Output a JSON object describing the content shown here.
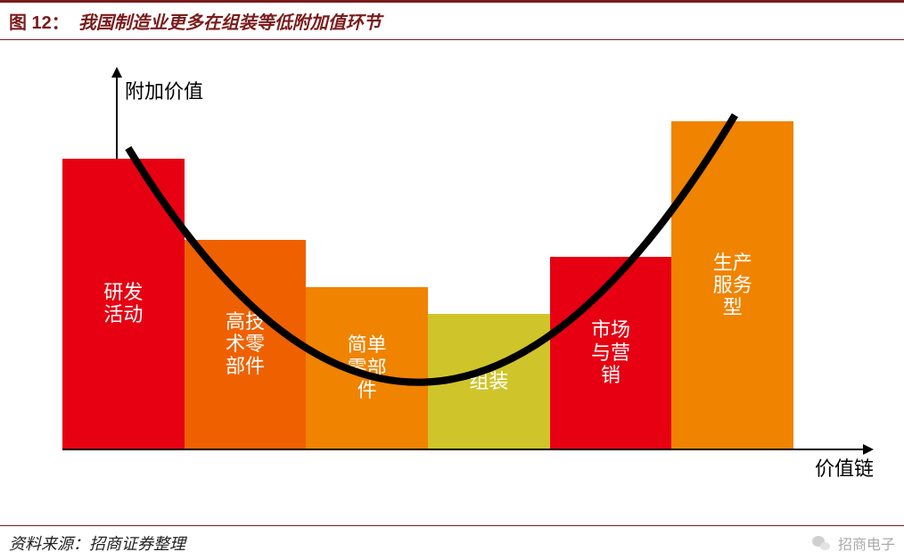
{
  "header": {
    "figure_number": "图 12：",
    "figure_title": "我国制造业更多在组装等低附加值环节"
  },
  "chart": {
    "type": "bar",
    "y_axis_label": "附加价值",
    "x_axis_label": "价值链",
    "axis_color": "#000000",
    "background_color": "#ffffff",
    "label_fontsize": 22,
    "bar_label_fontsize": 22,
    "bar_label_color": "#ffffff",
    "bars": [
      {
        "label": "研发活动",
        "height_pct": 86,
        "color": "#e60012",
        "label_orientation": "vertical"
      },
      {
        "label": "高技术零部件",
        "height_pct": 62,
        "color": "#ef6100",
        "label_orientation": "vertical"
      },
      {
        "label": "简单零部件",
        "height_pct": 48,
        "color": "#f08300",
        "label_orientation": "vertical"
      },
      {
        "label": "组装",
        "height_pct": 40,
        "color": "#cfc52a",
        "label_orientation": "horizontal"
      },
      {
        "label": "市场与营销",
        "height_pct": 57,
        "color": "#e60012",
        "label_orientation": "vertical"
      },
      {
        "label": "生产服务型",
        "height_pct": 97,
        "color": "#f08300",
        "label_orientation": "vertical"
      }
    ],
    "curve": {
      "type": "smile",
      "stroke": "#000000",
      "stroke_width": 3,
      "points_pct": [
        {
          "x": 9,
          "y": 90
        },
        {
          "x": 50,
          "y": 26
        },
        {
          "x": 92,
          "y": 99
        }
      ]
    }
  },
  "footer": {
    "source_label": "资料来源：",
    "source_value": "招商证券整理",
    "watermark": "招商电子"
  },
  "colors": {
    "header_border": "#7a1c1c",
    "header_text": "#7a1c1c"
  }
}
